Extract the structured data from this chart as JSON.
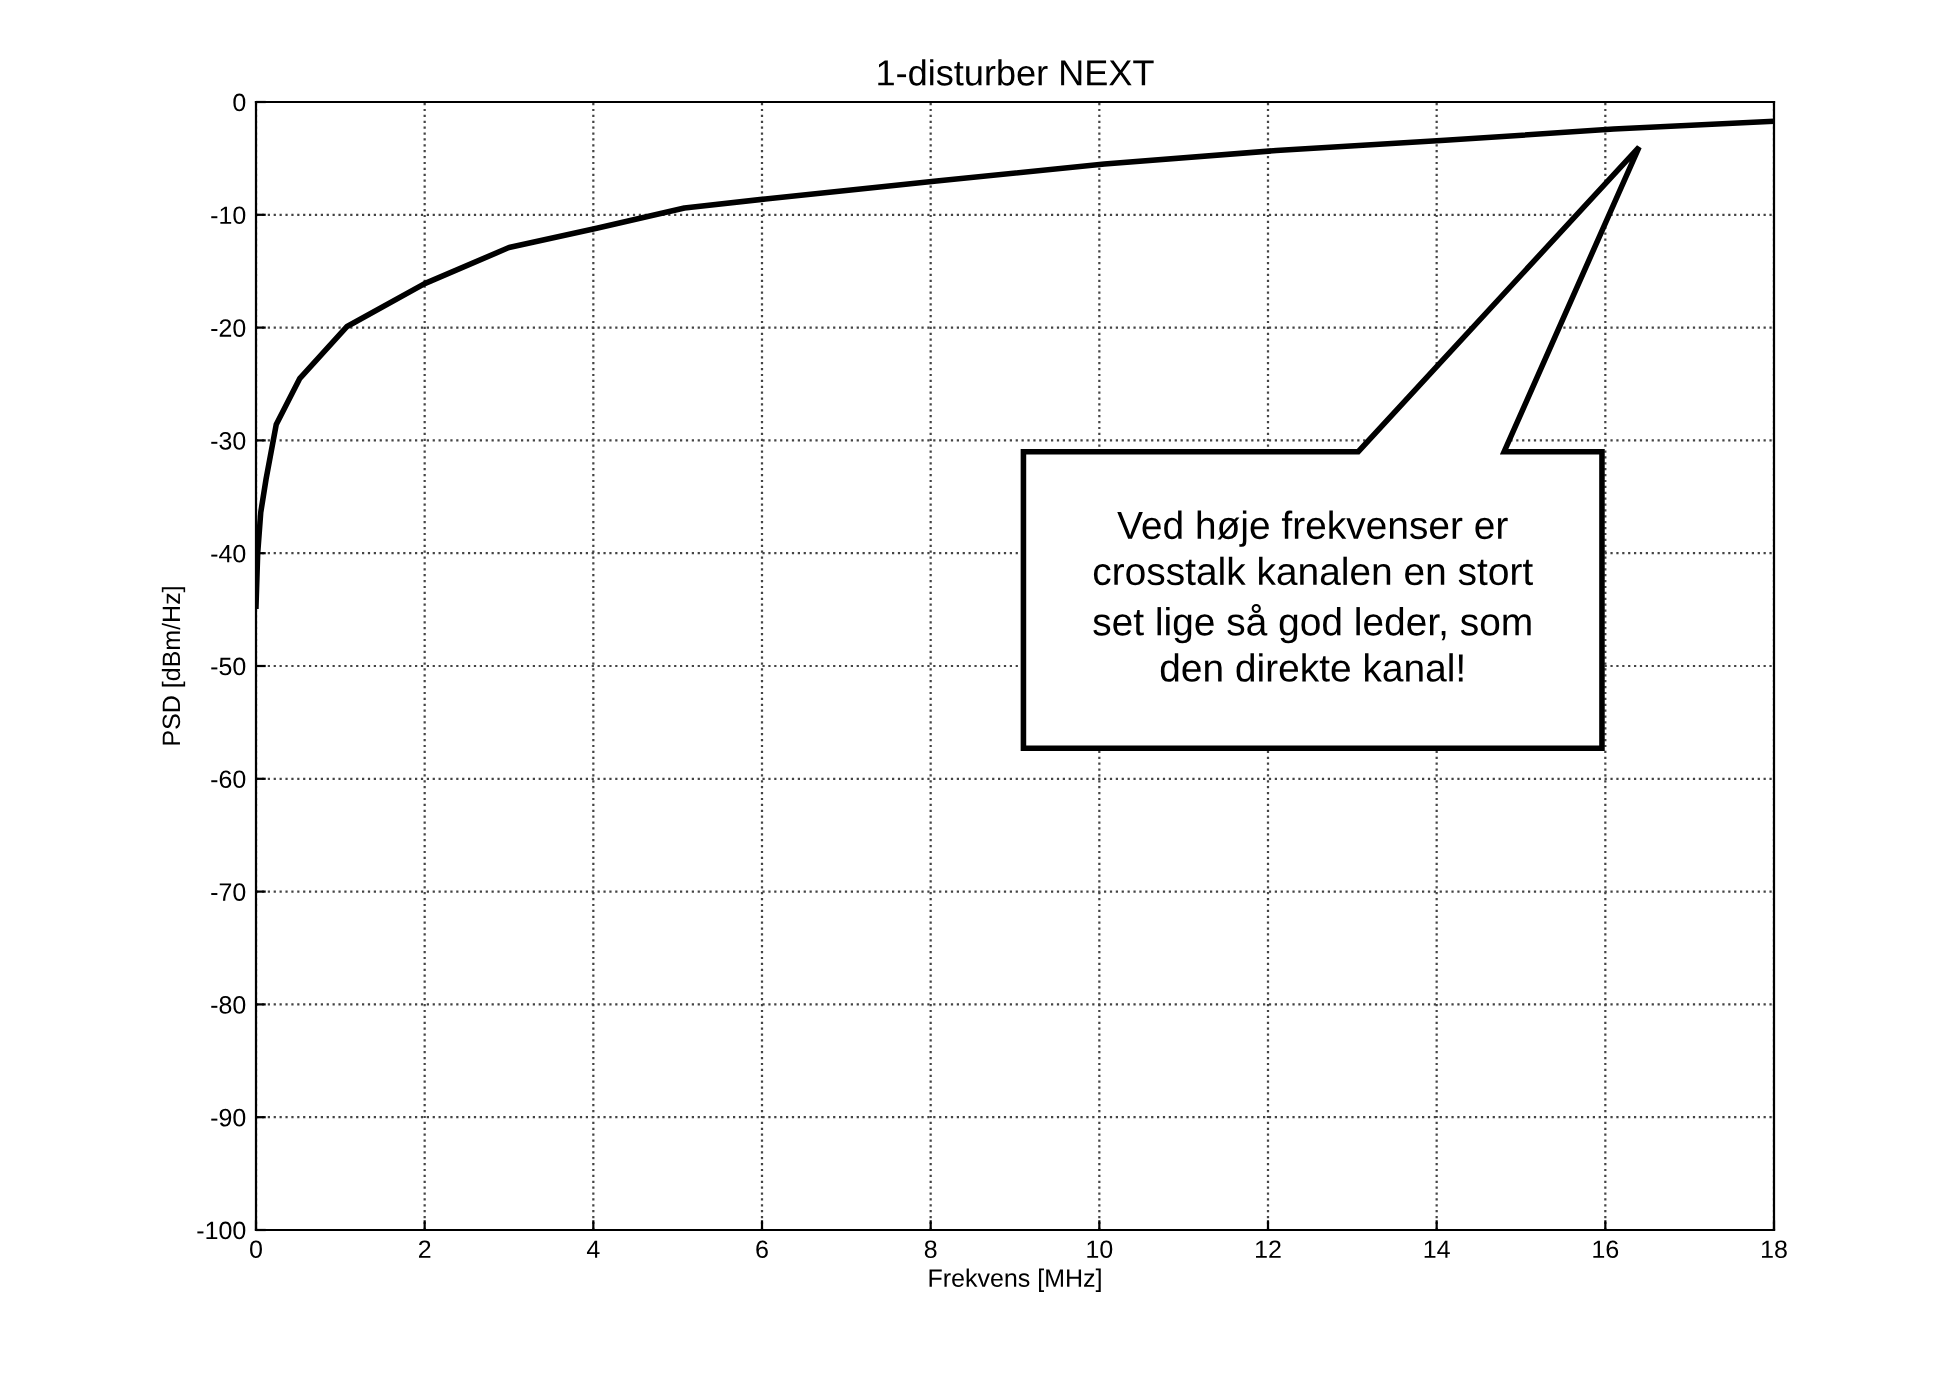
{
  "chart_data": {
    "type": "line",
    "title": "1-disturber NEXT",
    "xlabel": "Frekvens [MHz]",
    "ylabel": "PSD [dBm/Hz]",
    "x": [
      0,
      0.02,
      0.056,
      0.12,
      0.24,
      0.52,
      1.08,
      2.0,
      3.0,
      4.04,
      5.08,
      6.04,
      8.07,
      10.06,
      12.1,
      14.1,
      16.1,
      18
    ],
    "series": [
      {
        "color": "#000000",
        "values": [
          -44.7,
          -40,
          -36.4,
          -33.4,
          -28.6,
          -24.5,
          -19.9,
          -16.1,
          -12.9,
          -11.2,
          -9.4,
          -8.6,
          -7.0,
          -5.5,
          -4.3,
          -3.4,
          -2.4,
          -1.7
        ]
      }
    ],
    "xlim": [
      0,
      18
    ],
    "ylim": [
      -100,
      0
    ],
    "xticks": [
      0,
      2,
      4,
      6,
      8,
      10,
      12,
      14,
      16,
      18
    ],
    "yticks": [
      -100,
      -90,
      -80,
      -70,
      -60,
      -50,
      -40,
      -30,
      -20,
      -10,
      0
    ],
    "grid": true,
    "marker": "none",
    "line_style": "solid",
    "annotations": [
      "Ved høje frekvenser er\ncrosstalk kanalen en stort\nset lige så god leder, som\nden direkte kanal!"
    ]
  }
}
